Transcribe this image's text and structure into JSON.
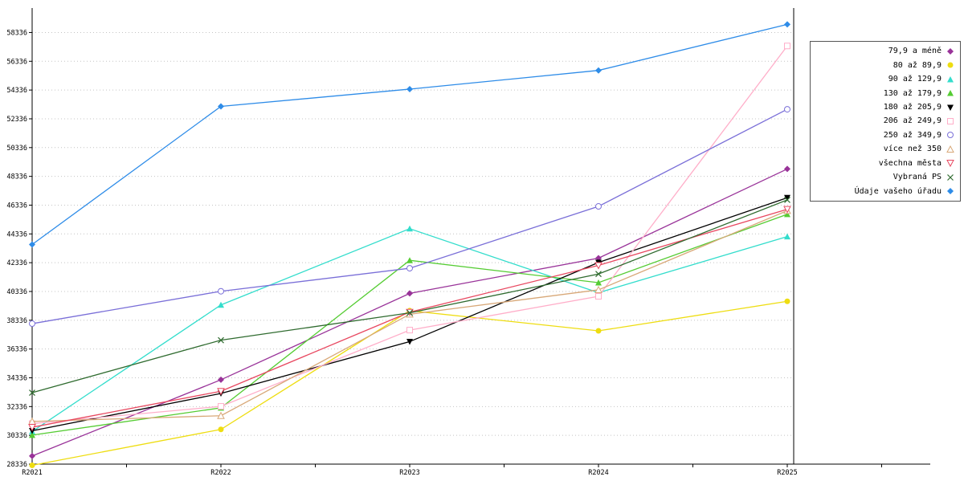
{
  "chart_data": {
    "type": "line",
    "title": "",
    "xlabel": "",
    "ylabel": "",
    "x_labels": [
      "R2021",
      "R2022",
      "R2023",
      "R2024",
      "R2025"
    ],
    "y_ticks": [
      28336,
      30336,
      32336,
      34336,
      36336,
      38336,
      40336,
      42336,
      44336,
      46336,
      48336,
      50336,
      52336,
      54336,
      56336,
      58336
    ],
    "ylim": [
      28336,
      60036
    ],
    "grid": "horizontal-dotted",
    "grid_color": "#c4c4c4",
    "axis_color": "#000000",
    "legend_position": "top-right",
    "series": [
      {
        "name": "79,9 a méně",
        "color": "#993399",
        "marker": "diamond-filled",
        "values": [
          28900,
          34200,
          40200,
          42650,
          48850
        ]
      },
      {
        "name": "80 až 89,9",
        "color": "#EEDD11",
        "marker": "circle-filled",
        "values": [
          28250,
          30750,
          39000,
          37600,
          39650
        ]
      },
      {
        "name": "90 až 129,9",
        "color": "#33DDCC",
        "marker": "triangle-filled",
        "values": [
          30600,
          39400,
          44700,
          40250,
          44150
        ]
      },
      {
        "name": "130 až 179,9",
        "color": "#55CC33",
        "marker": "triangle-filled",
        "values": [
          30350,
          32250,
          42500,
          40950,
          45700
        ]
      },
      {
        "name": "180 až 205,9",
        "color": "#000000",
        "marker": "triangle-down-filled",
        "values": [
          30650,
          33250,
          36850,
          42350,
          46850
        ]
      },
      {
        "name": "206 až 249,9",
        "color": "#FFAEC9",
        "marker": "square-open",
        "values": [
          31150,
          32350,
          37650,
          40000,
          57400
        ]
      },
      {
        "name": "250 až 349,9",
        "color": "#7A6FD8",
        "marker": "circle-open",
        "values": [
          38100,
          40350,
          41950,
          46250,
          53000
        ]
      },
      {
        "name": "více než 350",
        "color": "#D8A878",
        "marker": "triangle-open",
        "values": [
          31300,
          31700,
          38750,
          40450,
          45950
        ]
      },
      {
        "name": "všechna města",
        "color": "#E84860",
        "marker": "triangle-down-open",
        "values": [
          30900,
          33400,
          38900,
          42150,
          46050
        ]
      },
      {
        "name": "Vybraná PS",
        "color": "#2F6B2F",
        "marker": "x",
        "values": [
          33300,
          36950,
          38850,
          41550,
          46700
        ]
      },
      {
        "name": "Údaje vašeho úřadu",
        "color": "#2E8CE8",
        "marker": "diamond-filled",
        "values": [
          43600,
          53200,
          54400,
          55700,
          58900
        ]
      }
    ]
  }
}
